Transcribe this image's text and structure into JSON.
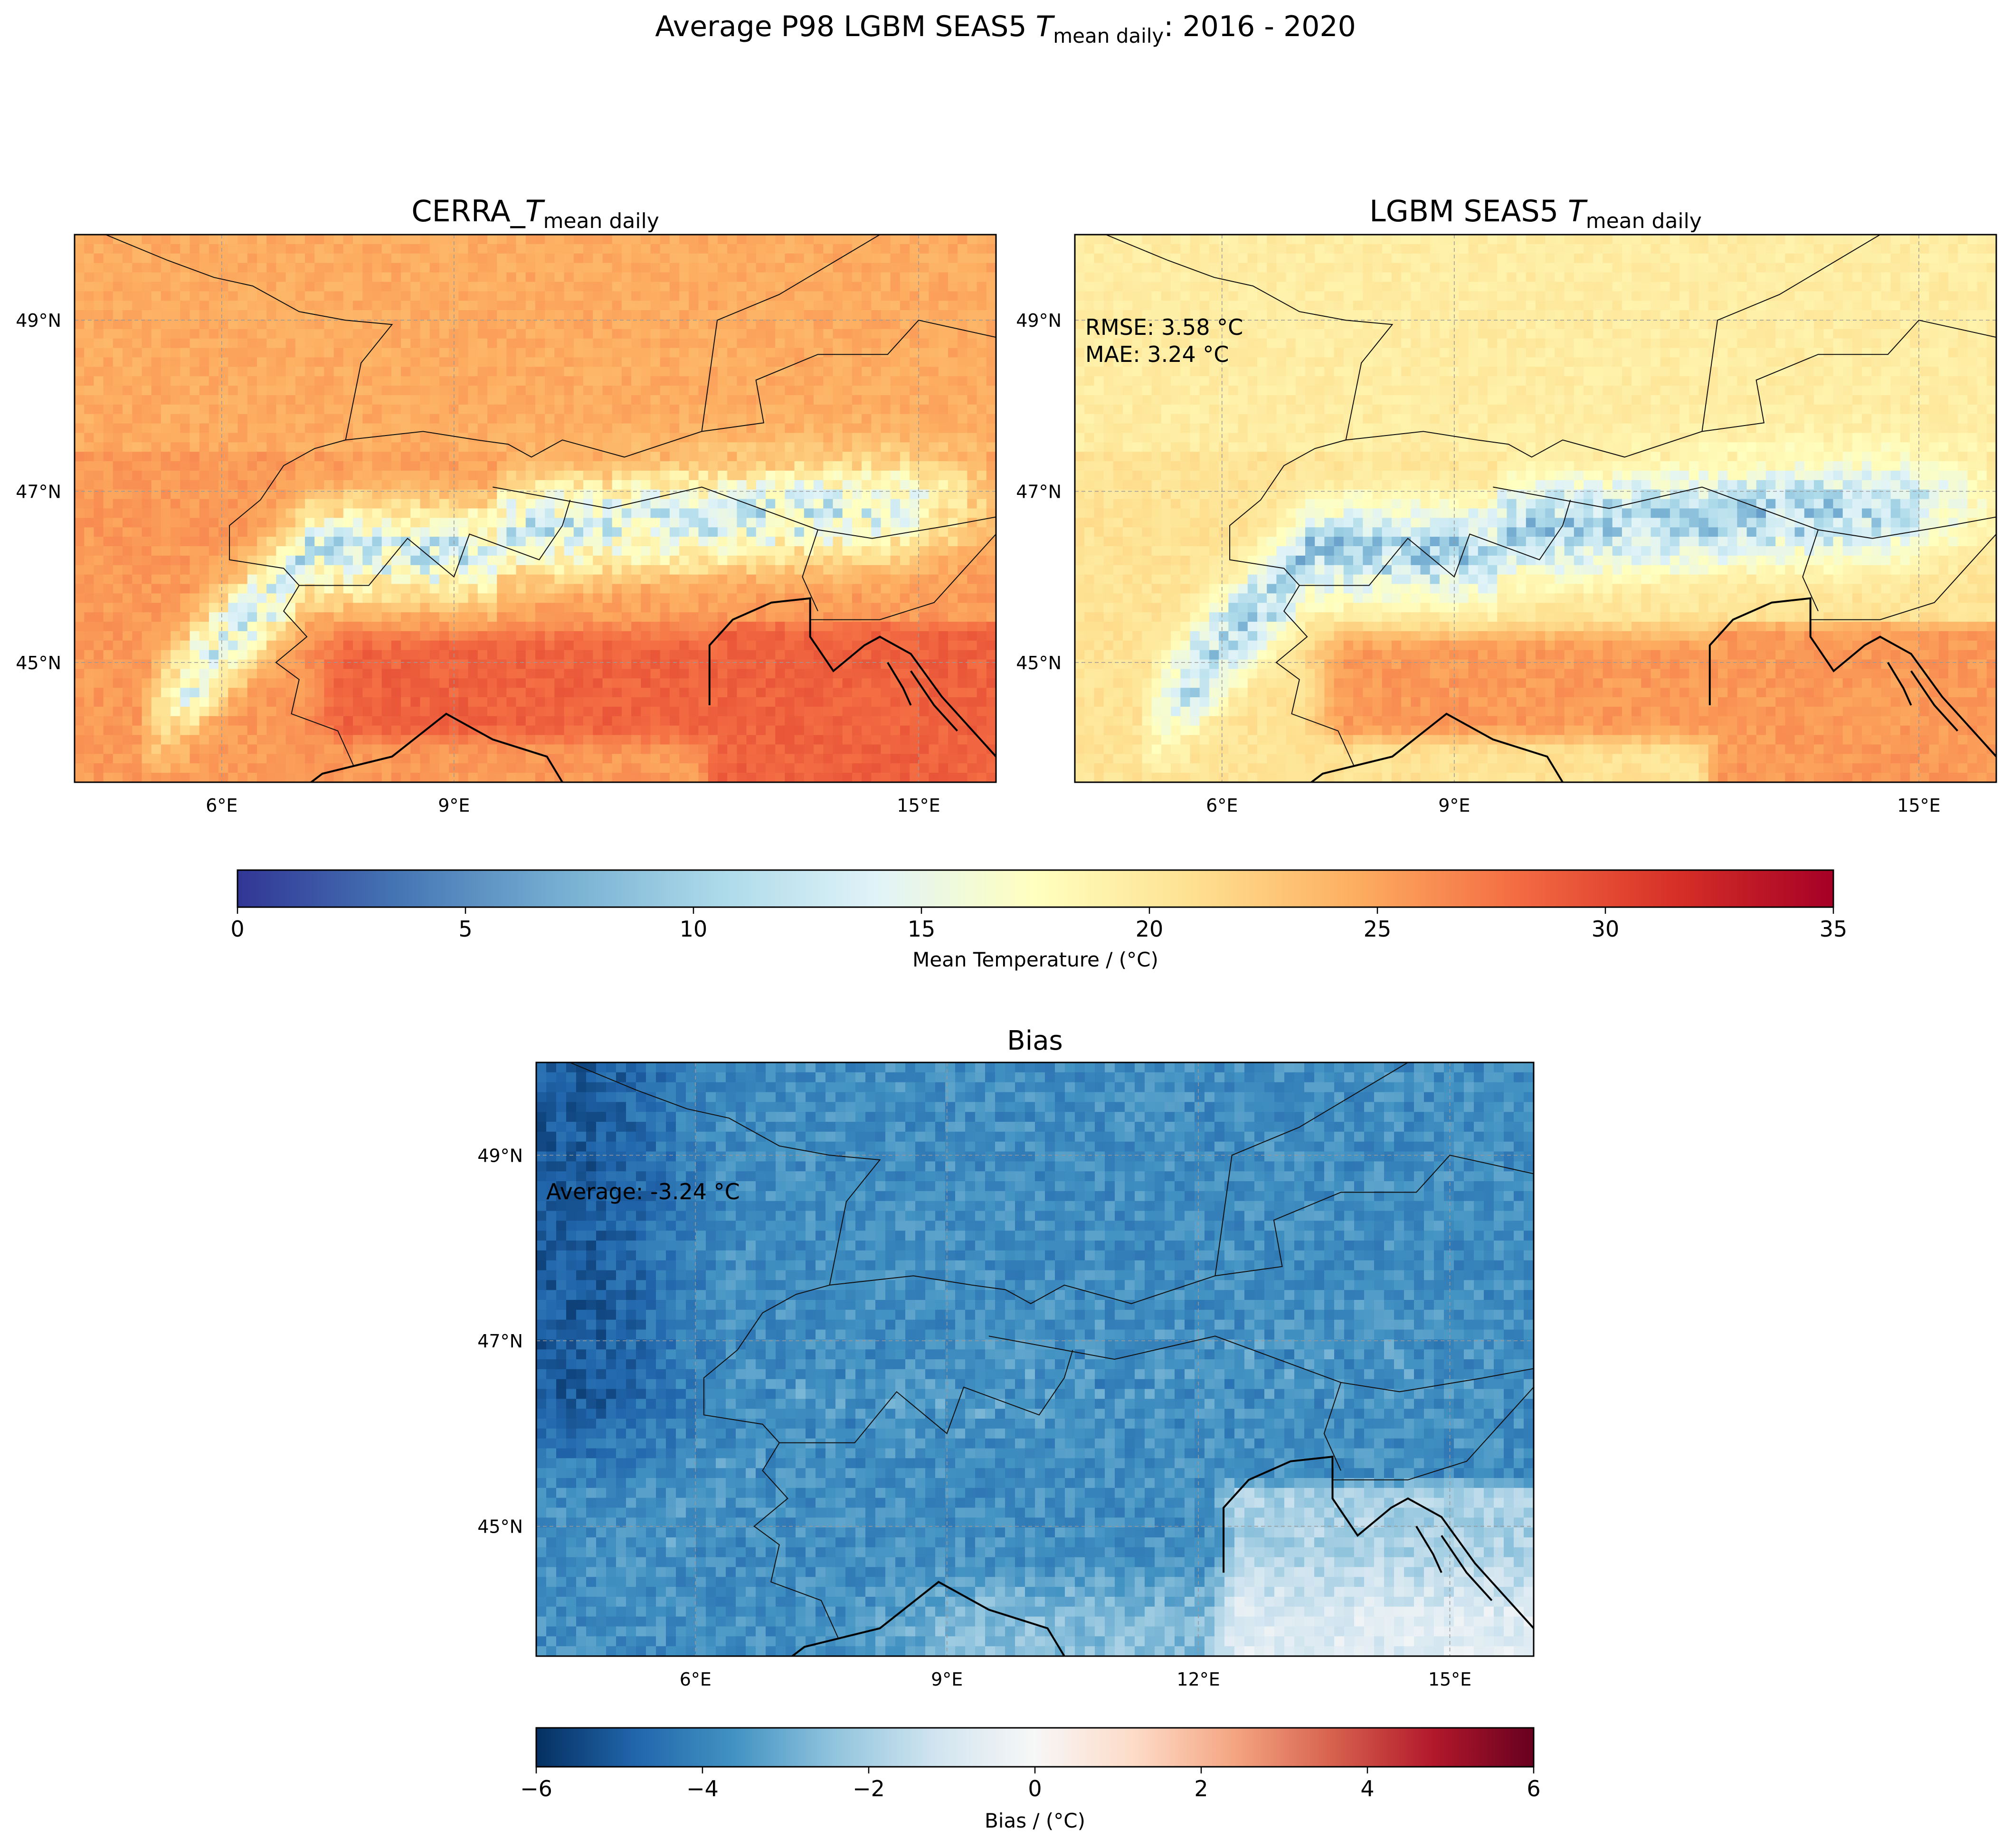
{
  "figure": {
    "suptitle_main": "Average P98 LGBM SEAS5 ",
    "suptitle_var": "T",
    "suptitle_sub": "mean daily",
    "suptitle_tail": ": 2016 - 2020"
  },
  "chart_data": [
    {
      "type": "heatmap",
      "panel": "cerra",
      "title_prefix": "CERRA_",
      "title_var": "T",
      "title_sub": "mean daily",
      "xlim": [
        4.1,
        16.0
      ],
      "ylim": [
        43.6,
        50.0
      ],
      "x_ticks": [
        6,
        9,
        15
      ],
      "x_tick_labels": [
        "6°E",
        "9°E",
        "15°E"
      ],
      "y_ticks": [
        45,
        47,
        49
      ],
      "y_tick_labels": [
        "45°N",
        "47°N",
        "49°N"
      ],
      "grid": true,
      "colormap": "RdYlBu_r",
      "value_range": [
        0,
        35
      ],
      "field_description": {
        "plains": 25,
        "po_valley_sea": 28,
        "alps": 12
      }
    },
    {
      "type": "heatmap",
      "panel": "lgbm",
      "title_prefix": "LGBM SEAS5 ",
      "title_var": "T",
      "title_sub": "mean daily",
      "xlim": [
        4.1,
        16.0
      ],
      "ylim": [
        43.6,
        50.0
      ],
      "x_ticks": [
        6,
        9,
        15
      ],
      "x_tick_labels": [
        "6°E",
        "9°E",
        "15°E"
      ],
      "y_ticks": [
        45,
        47,
        49
      ],
      "y_tick_labels": [
        "45°N",
        "47°N",
        "49°N"
      ],
      "grid": true,
      "colormap": "RdYlBu_r",
      "value_range": [
        0,
        35
      ],
      "annotations": [
        "RMSE: 3.58 °C",
        "MAE: 3.24 °C"
      ],
      "field_description": {
        "plains": 20,
        "po_valley_sea": 25,
        "alps": 9
      }
    },
    {
      "type": "heatmap",
      "panel": "bias",
      "title": "Bias",
      "xlim": [
        4.1,
        16.0
      ],
      "ylim": [
        43.6,
        50.0
      ],
      "x_ticks": [
        6,
        9,
        12,
        15
      ],
      "x_tick_labels": [
        "6°E",
        "9°E",
        "12°E",
        "15°E"
      ],
      "y_ticks": [
        45,
        47,
        49
      ],
      "y_tick_labels": [
        "45°N",
        "47°N",
        "49°N"
      ],
      "grid": true,
      "colormap": "RdBu_r",
      "value_range": [
        -6,
        6
      ],
      "annotations": [
        "Average: -3.24 °C"
      ],
      "average": -3.24
    }
  ],
  "colorbars": {
    "temperature": {
      "label": "Mean Temperature / (°C)",
      "ticks": [
        0,
        5,
        10,
        15,
        20,
        25,
        30,
        35
      ],
      "tick_labels": [
        "0",
        "5",
        "10",
        "15",
        "20",
        "25",
        "30",
        "35"
      ],
      "colors": [
        "#313695",
        "#4575b4",
        "#74add1",
        "#abd9e9",
        "#e0f3f8",
        "#ffffbf",
        "#fee090",
        "#fdae61",
        "#f46d43",
        "#d73027",
        "#a50026"
      ]
    },
    "bias": {
      "label": "Bias / (°C)",
      "ticks": [
        -6,
        -4,
        -2,
        0,
        2,
        4,
        6
      ],
      "tick_labels": [
        "−6",
        "−4",
        "−2",
        "0",
        "2",
        "4",
        "6"
      ],
      "colors": [
        "#053061",
        "#2166ac",
        "#4393c3",
        "#92c5de",
        "#d1e5f0",
        "#f7f7f7",
        "#fddbc7",
        "#f4a582",
        "#d6604d",
        "#b2182b",
        "#67001f"
      ]
    }
  }
}
